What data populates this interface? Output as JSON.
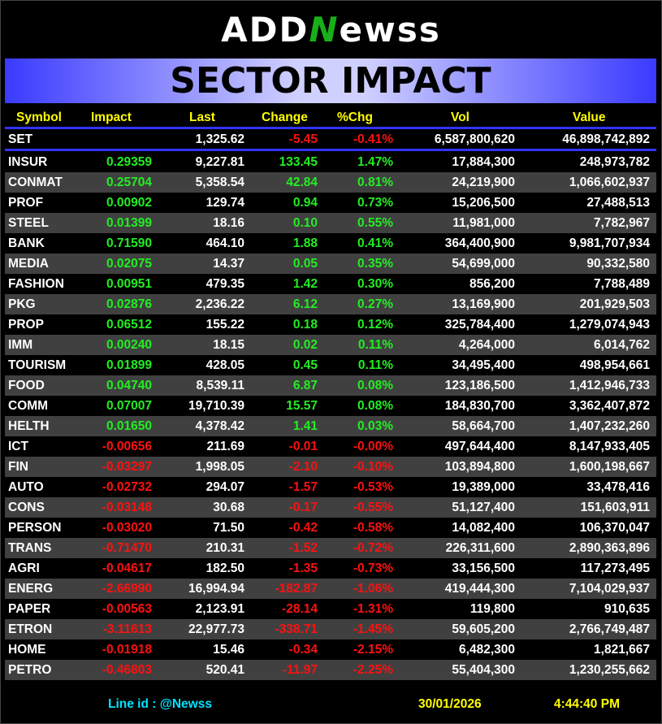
{
  "logo": {
    "text_a": "ADD",
    "text_n": "N",
    "text_b": "ewss"
  },
  "title": "SECTOR IMPACT",
  "columns": [
    "Symbol",
    "Impact",
    "Last",
    "Change",
    "%Chg",
    "Vol",
    "Value"
  ],
  "index_row": {
    "symbol": "SET",
    "impact": "",
    "last": "1,325.62",
    "change": "-5.45",
    "pct": "-0.41%",
    "vol": "6,587,800,620",
    "value": "46,898,742,892",
    "dir": "down"
  },
  "rows": [
    {
      "symbol": "INSUR",
      "impact": "0.29359",
      "last": "9,227.81",
      "change": "133.45",
      "pct": "1.47%",
      "vol": "17,884,300",
      "value": "248,973,782",
      "dir": "up"
    },
    {
      "symbol": "CONMAT",
      "impact": "0.25704",
      "last": "5,358.54",
      "change": "42.84",
      "pct": "0.81%",
      "vol": "24,219,900",
      "value": "1,066,602,937",
      "dir": "up"
    },
    {
      "symbol": "PROF",
      "impact": "0.00902",
      "last": "129.74",
      "change": "0.94",
      "pct": "0.73%",
      "vol": "15,206,500",
      "value": "27,488,513",
      "dir": "up"
    },
    {
      "symbol": "STEEL",
      "impact": "0.01399",
      "last": "18.16",
      "change": "0.10",
      "pct": "0.55%",
      "vol": "11,981,000",
      "value": "7,782,967",
      "dir": "up"
    },
    {
      "symbol": "BANK",
      "impact": "0.71590",
      "last": "464.10",
      "change": "1.88",
      "pct": "0.41%",
      "vol": "364,400,900",
      "value": "9,981,707,934",
      "dir": "up"
    },
    {
      "symbol": "MEDIA",
      "impact": "0.02075",
      "last": "14.37",
      "change": "0.05",
      "pct": "0.35%",
      "vol": "54,699,000",
      "value": "90,332,580",
      "dir": "up"
    },
    {
      "symbol": "FASHION",
      "impact": "0.00951",
      "last": "479.35",
      "change": "1.42",
      "pct": "0.30%",
      "vol": "856,200",
      "value": "7,788,489",
      "dir": "up"
    },
    {
      "symbol": "PKG",
      "impact": "0.02876",
      "last": "2,236.22",
      "change": "6.12",
      "pct": "0.27%",
      "vol": "13,169,900",
      "value": "201,929,503",
      "dir": "up"
    },
    {
      "symbol": "PROP",
      "impact": "0.06512",
      "last": "155.22",
      "change": "0.18",
      "pct": "0.12%",
      "vol": "325,784,400",
      "value": "1,279,074,943",
      "dir": "up"
    },
    {
      "symbol": "IMM",
      "impact": "0.00240",
      "last": "18.15",
      "change": "0.02",
      "pct": "0.11%",
      "vol": "4,264,000",
      "value": "6,014,762",
      "dir": "up"
    },
    {
      "symbol": "TOURISM",
      "impact": "0.01899",
      "last": "428.05",
      "change": "0.45",
      "pct": "0.11%",
      "vol": "34,495,400",
      "value": "498,954,661",
      "dir": "up"
    },
    {
      "symbol": "FOOD",
      "impact": "0.04740",
      "last": "8,539.11",
      "change": "6.87",
      "pct": "0.08%",
      "vol": "123,186,500",
      "value": "1,412,946,733",
      "dir": "up"
    },
    {
      "symbol": "COMM",
      "impact": "0.07007",
      "last": "19,710.39",
      "change": "15.57",
      "pct": "0.08%",
      "vol": "184,830,700",
      "value": "3,362,407,872",
      "dir": "up"
    },
    {
      "symbol": "HELTH",
      "impact": "0.01650",
      "last": "4,378.42",
      "change": "1.41",
      "pct": "0.03%",
      "vol": "58,664,700",
      "value": "1,407,232,260",
      "dir": "up"
    },
    {
      "symbol": "ICT",
      "impact": "-0.00656",
      "last": "211.69",
      "change": "-0.01",
      "pct": "-0.00%",
      "vol": "497,644,400",
      "value": "8,147,933,405",
      "dir": "down"
    },
    {
      "symbol": "FIN",
      "impact": "-0.03297",
      "last": "1,998.05",
      "change": "-2.10",
      "pct": "-0.10%",
      "vol": "103,894,800",
      "value": "1,600,198,667",
      "dir": "down"
    },
    {
      "symbol": "AUTO",
      "impact": "-0.02732",
      "last": "294.07",
      "change": "-1.57",
      "pct": "-0.53%",
      "vol": "19,389,000",
      "value": "33,478,416",
      "dir": "down"
    },
    {
      "symbol": "CONS",
      "impact": "-0.03148",
      "last": "30.68",
      "change": "-0.17",
      "pct": "-0.55%",
      "vol": "51,127,400",
      "value": "151,603,911",
      "dir": "down"
    },
    {
      "symbol": "PERSON",
      "impact": "-0.03020",
      "last": "71.50",
      "change": "-0.42",
      "pct": "-0.58%",
      "vol": "14,082,400",
      "value": "106,370,047",
      "dir": "down"
    },
    {
      "symbol": "TRANS",
      "impact": "-0.71470",
      "last": "210.31",
      "change": "-1.52",
      "pct": "-0.72%",
      "vol": "226,311,600",
      "value": "2,890,363,896",
      "dir": "down"
    },
    {
      "symbol": "AGRI",
      "impact": "-0.04617",
      "last": "182.50",
      "change": "-1.35",
      "pct": "-0.73%",
      "vol": "33,156,500",
      "value": "117,273,495",
      "dir": "down"
    },
    {
      "symbol": "ENERG",
      "impact": "-2.66990",
      "last": "16,994.94",
      "change": "-182.87",
      "pct": "-1.06%",
      "vol": "419,444,300",
      "value": "7,104,029,937",
      "dir": "down"
    },
    {
      "symbol": "PAPER",
      "impact": "-0.00563",
      "last": "2,123.91",
      "change": "-28.14",
      "pct": "-1.31%",
      "vol": "119,800",
      "value": "910,635",
      "dir": "down"
    },
    {
      "symbol": "ETRON",
      "impact": "-3.11613",
      "last": "22,977.73",
      "change": "-338.71",
      "pct": "-1.45%",
      "vol": "59,605,200",
      "value": "2,766,749,487",
      "dir": "down"
    },
    {
      "symbol": "HOME",
      "impact": "-0.01918",
      "last": "15.46",
      "change": "-0.34",
      "pct": "-2.15%",
      "vol": "6,482,300",
      "value": "1,821,667",
      "dir": "down"
    },
    {
      "symbol": "PETRO",
      "impact": "-0.46803",
      "last": "520.41",
      "change": "-11.97",
      "pct": "-2.25%",
      "vol": "55,404,300",
      "value": "1,230,255,662",
      "dir": "down"
    }
  ],
  "footer": {
    "line_id": "Line id  : @Newss",
    "date": "30/01/2026",
    "time": "4:44:40 PM"
  },
  "colors": {
    "up": "#22ee22",
    "down": "#ff1010",
    "header": "#ffff00",
    "accent": "#3333ff",
    "footer_id": "#00e5ff"
  }
}
